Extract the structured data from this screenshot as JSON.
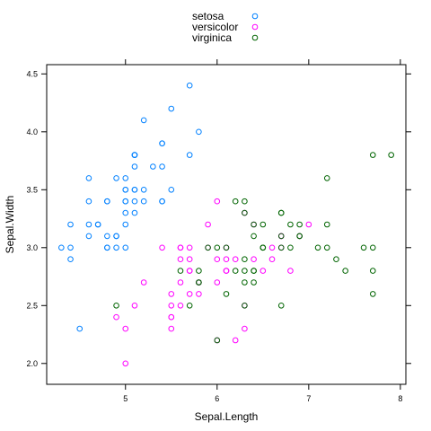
{
  "chart_data": {
    "type": "scatter",
    "xlabel": "Sepal.Length",
    "ylabel": "Sepal.Width",
    "xlim": [
      4.14,
      8.06
    ],
    "ylim": [
      1.82,
      4.58
    ],
    "xticks": [
      5,
      6,
      7,
      8
    ],
    "yticks": [
      2.0,
      2.5,
      3.0,
      3.5,
      4.0,
      4.5
    ],
    "xtick_labels": [
      "5",
      "6",
      "7",
      "8"
    ],
    "ytick_labels": [
      "2.0",
      "2.5",
      "3.0",
      "3.5",
      "4.0",
      "4.5"
    ],
    "legend_position": "top",
    "series": [
      {
        "name": "setosa",
        "color": "#0080ff",
        "x": [
          5.1,
          4.9,
          4.7,
          4.6,
          5.0,
          5.4,
          4.6,
          5.0,
          4.4,
          4.9,
          5.4,
          4.8,
          4.8,
          4.3,
          5.8,
          5.7,
          5.4,
          5.1,
          5.7,
          5.1,
          5.4,
          5.1,
          4.6,
          5.1,
          4.8,
          5.0,
          5.0,
          5.2,
          5.2,
          4.7,
          4.8,
          5.4,
          5.2,
          5.5,
          4.9,
          5.0,
          5.5,
          4.9,
          4.4,
          5.1,
          5.0,
          4.5,
          4.4,
          5.0,
          5.1,
          4.8,
          5.1,
          4.6,
          5.3,
          5.0
        ],
        "y": [
          3.5,
          3.0,
          3.2,
          3.1,
          3.6,
          3.9,
          3.4,
          3.4,
          2.9,
          3.1,
          3.7,
          3.4,
          3.0,
          3.0,
          4.0,
          4.4,
          3.9,
          3.5,
          3.8,
          3.8,
          3.4,
          3.7,
          3.6,
          3.3,
          3.4,
          3.0,
          3.4,
          3.5,
          3.4,
          3.2,
          3.1,
          3.4,
          4.1,
          4.2,
          3.1,
          3.2,
          3.5,
          3.6,
          3.0,
          3.4,
          3.5,
          2.3,
          3.2,
          3.5,
          3.8,
          3.0,
          3.8,
          3.2,
          3.7,
          3.3
        ]
      },
      {
        "name": "versicolor",
        "color": "#ff00ff",
        "x": [
          7.0,
          6.4,
          6.9,
          5.5,
          6.5,
          5.7,
          6.3,
          4.9,
          6.6,
          5.2,
          5.0,
          5.9,
          6.0,
          6.1,
          5.6,
          6.7,
          5.6,
          5.8,
          6.2,
          5.6,
          5.9,
          6.1,
          6.3,
          6.1,
          6.4,
          6.6,
          6.8,
          6.7,
          6.0,
          5.7,
          5.5,
          5.5,
          5.8,
          6.0,
          5.4,
          6.0,
          6.7,
          6.3,
          5.6,
          5.5,
          5.5,
          6.1,
          5.8,
          5.0,
          5.6,
          5.7,
          5.7,
          6.2,
          5.1,
          5.7
        ],
        "y": [
          3.2,
          3.2,
          3.1,
          2.3,
          2.8,
          2.8,
          3.3,
          2.4,
          2.9,
          2.7,
          2.0,
          3.0,
          2.2,
          2.9,
          2.9,
          3.1,
          3.0,
          2.7,
          2.2,
          2.5,
          3.2,
          2.8,
          2.5,
          2.8,
          2.9,
          3.0,
          2.8,
          3.0,
          2.9,
          2.6,
          2.4,
          2.4,
          2.7,
          2.7,
          3.0,
          3.4,
          3.1,
          2.3,
          3.0,
          2.5,
          2.6,
          3.0,
          2.6,
          2.3,
          2.7,
          3.0,
          2.9,
          2.9,
          2.5,
          2.8
        ]
      },
      {
        "name": "virginica",
        "color": "#006400",
        "x": [
          6.3,
          5.8,
          7.1,
          6.3,
          6.5,
          7.6,
          4.9,
          7.3,
          6.7,
          7.2,
          6.5,
          6.4,
          6.8,
          5.7,
          5.8,
          6.4,
          6.5,
          7.7,
          7.7,
          6.0,
          6.9,
          5.6,
          7.7,
          6.3,
          6.7,
          7.2,
          6.2,
          6.1,
          6.4,
          7.2,
          7.4,
          7.9,
          6.4,
          6.3,
          6.1,
          7.7,
          6.3,
          6.4,
          6.0,
          6.9,
          6.7,
          6.9,
          5.8,
          6.8,
          6.7,
          6.7,
          6.3,
          6.5,
          6.2,
          5.9
        ],
        "y": [
          3.3,
          2.7,
          3.0,
          2.9,
          3.0,
          3.0,
          2.5,
          2.9,
          2.5,
          3.6,
          3.2,
          2.7,
          3.0,
          2.5,
          2.8,
          3.2,
          3.0,
          3.8,
          2.6,
          2.2,
          3.2,
          2.8,
          2.8,
          2.7,
          3.3,
          3.2,
          2.8,
          3.0,
          2.8,
          3.0,
          2.8,
          3.8,
          2.8,
          2.8,
          2.6,
          3.0,
          3.4,
          3.1,
          3.0,
          3.1,
          3.1,
          3.1,
          2.7,
          3.2,
          3.3,
          3.0,
          2.5,
          3.0,
          3.4,
          3.0
        ]
      }
    ]
  }
}
